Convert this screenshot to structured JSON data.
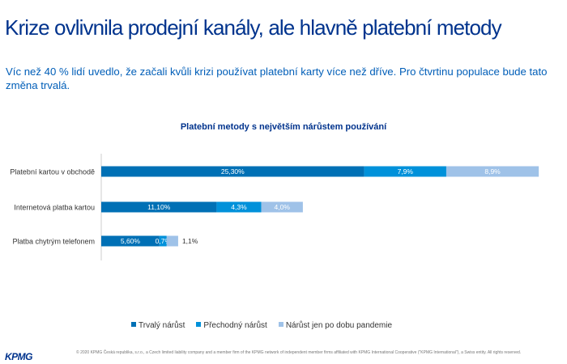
{
  "header": {
    "title": "Krize ovlivnila prodejní kanály, ale hlavně platební metody",
    "subtitle": "Víc než 40 % lidí uvedlo, že začali kvůli krizi používat platební karty více než dříve. Pro čtvrtinu populace bude tato změna trvalá."
  },
  "chart_data": {
    "type": "bar",
    "orientation": "horizontal",
    "stacked": true,
    "title": "Platební metody s největším nárůstem používání",
    "categories": [
      "Platební kartou v obchodě",
      "Internetová platba kartou",
      "Platba chytrým telefonem"
    ],
    "series": [
      {
        "name": "Trvalý nárůst",
        "color": "#0070B5",
        "values": [
          25.3,
          11.1,
          5.6
        ],
        "labels": [
          "25,30%",
          "11,10%",
          "5,60%"
        ]
      },
      {
        "name": "Přechodný nárůst",
        "color": "#0091DA",
        "values": [
          7.9,
          4.3,
          0.7
        ],
        "labels": [
          "7,9%",
          "4,3%",
          "0,7%"
        ]
      },
      {
        "name": "Nárůst jen po dobu pandemie",
        "color": "#9FC2E8",
        "values": [
          8.9,
          4.0,
          1.1
        ],
        "labels": [
          "8,9%",
          "4,0%",
          "1,1%"
        ]
      }
    ],
    "legend": "bottom",
    "grid": false
  },
  "footer": {
    "copyright": "© 2020 KPMG Česká republika, s.r.o., a Czech limited liability company and a member firm of the KPMG network of independent member firms affiliated with KPMG International Cooperative (\"KPMG International\"), a Swiss entity. All rights reserved.",
    "logo": "KPMG"
  }
}
